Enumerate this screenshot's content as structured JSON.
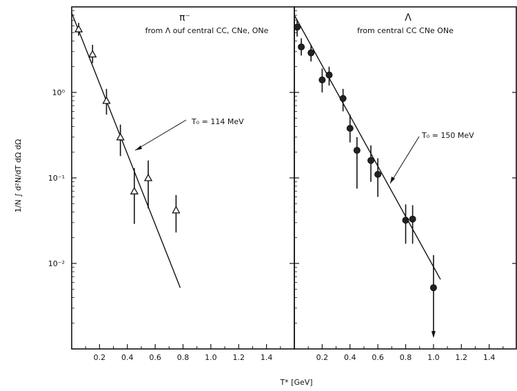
{
  "chart_data": [
    {
      "type": "scatter",
      "title": "π⁻",
      "subtitle": "from Λ ouf central CC, CNe, ONe",
      "xlabel": "T* [GeV]",
      "ylabel": "1/N ∫ d²N/dT dΩ dΩ",
      "xlim": [
        0,
        1.6
      ],
      "ylim": [
        0.001,
        10
      ],
      "yscale": "log",
      "x_ticks": [
        "0.2",
        "0.4",
        "0.6",
        "0.8",
        "1.0",
        "1.2",
        "1.4"
      ],
      "y_ticks": [
        "10⁰",
        "10⁻¹",
        "10⁻²"
      ],
      "grid": false,
      "marker": "open-triangle",
      "series": [
        {
          "points": [
            {
              "x": 0.05,
              "y": 5.5,
              "lo": 4.6,
              "hi": 6.5
            },
            {
              "x": 0.15,
              "y": 2.8,
              "lo": 2.2,
              "hi": 3.6
            },
            {
              "x": 0.25,
              "y": 0.8,
              "lo": 0.55,
              "hi": 1.1
            },
            {
              "x": 0.35,
              "y": 0.3,
              "lo": 0.18,
              "hi": 0.42
            },
            {
              "x": 0.45,
              "y": 0.07,
              "lo": 0.029,
              "hi": 0.13
            },
            {
              "x": 0.55,
              "y": 0.1,
              "lo": 0.044,
              "hi": 0.16
            },
            {
              "x": 0.75,
              "y": 0.042,
              "lo": 0.023,
              "hi": 0.063
            }
          ]
        }
      ],
      "fit": {
        "label": "T₀ = 114 MeV",
        "x1": 0.0,
        "y1": 8.5,
        "x2": 0.78,
        "y2": 0.0052
      }
    },
    {
      "type": "scatter",
      "title": "Λ",
      "subtitle": "from central CC CNe ONe",
      "xlim": [
        0,
        1.6
      ],
      "ylim": [
        0.001,
        10
      ],
      "yscale": "log",
      "x_ticks": [
        "0.2",
        "0.4",
        "0.6",
        "0.8",
        "1.0",
        "1.2",
        "1.4"
      ],
      "grid": false,
      "marker": "filled-circle",
      "series": [
        {
          "points": [
            {
              "x": 0.02,
              "y": 5.8,
              "lo": 4.5,
              "hi": 7.0
            },
            {
              "x": 0.05,
              "y": 3.4,
              "lo": 2.7,
              "hi": 4.3
            },
            {
              "x": 0.12,
              "y": 2.9,
              "lo": 2.3,
              "hi": 3.6
            },
            {
              "x": 0.2,
              "y": 1.4,
              "lo": 1.0,
              "hi": 1.9
            },
            {
              "x": 0.25,
              "y": 1.6,
              "lo": 1.2,
              "hi": 2.0
            },
            {
              "x": 0.35,
              "y": 0.85,
              "lo": 0.6,
              "hi": 1.1
            },
            {
              "x": 0.4,
              "y": 0.38,
              "lo": 0.26,
              "hi": 0.55
            },
            {
              "x": 0.45,
              "y": 0.21,
              "lo": 0.075,
              "hi": 0.3
            },
            {
              "x": 0.55,
              "y": 0.16,
              "lo": 0.09,
              "hi": 0.24
            },
            {
              "x": 0.6,
              "y": 0.11,
              "lo": 0.06,
              "hi": 0.17
            },
            {
              "x": 0.8,
              "y": 0.032,
              "lo": 0.017,
              "hi": 0.049
            },
            {
              "x": 0.85,
              "y": 0.033,
              "lo": 0.017,
              "hi": 0.048
            },
            {
              "x": 1.0,
              "y": 0.0052,
              "lo": 0.0015,
              "hi": 0.0125
            }
          ]
        }
      ],
      "fit": {
        "label": "T₀ = 150 MeV",
        "x1": 0.0,
        "y1": 8.0,
        "x2": 1.05,
        "y2": 0.0065
      }
    }
  ]
}
